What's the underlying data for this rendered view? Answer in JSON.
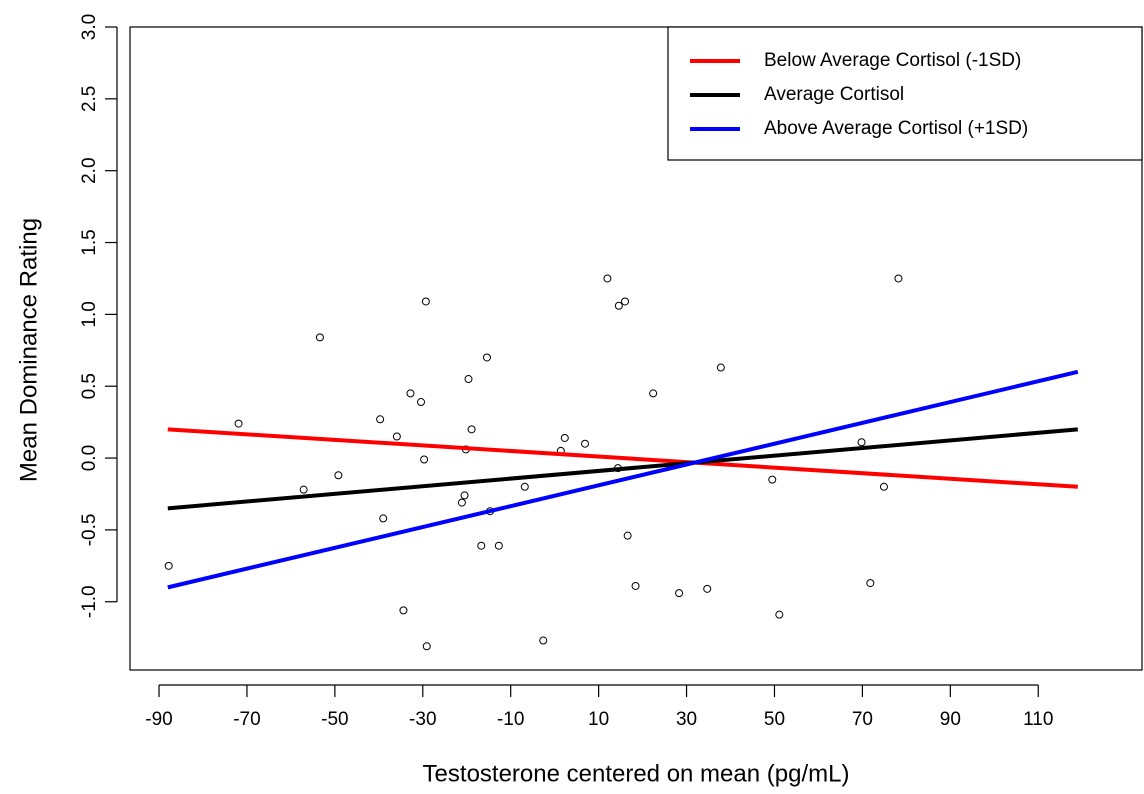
{
  "chart_data": {
    "type": "scatter",
    "x_label": "Testosterone centered on mean (pg/mL)",
    "y_label": "Mean Dominance Rating",
    "xlim": [
      -96.6,
      133.6
    ],
    "ylim": [
      -1.475,
      3.0
    ],
    "xticks": [
      -90,
      -70,
      -50,
      -30,
      -10,
      10,
      30,
      50,
      70,
      90,
      110
    ],
    "yticks": [
      {
        "value": -1,
        "label": "-1.0"
      },
      -0.5,
      {
        "value": 0,
        "label": "0.0"
      },
      0.5,
      {
        "value": 1,
        "label": "1.0"
      },
      1.5,
      {
        "value": 2,
        "label": "2.0"
      },
      2.5,
      {
        "value": 3,
        "label": "3.0"
      }
    ],
    "points": {
      "color": "#000000",
      "x": [
        -87.8,
        -71.9,
        -57.1,
        -53.4,
        -49.2,
        -39.7,
        -39.0,
        -35.9,
        -34.4,
        -32.8,
        -30.4,
        -29.7,
        -29.3,
        -29.1,
        -21.1,
        -20.5,
        -20.2,
        -19.6,
        -18.9,
        -16.7,
        -15.4,
        -14.7,
        -12.7,
        -6.8,
        -2.6,
        1.4,
        2.3,
        6.9,
        12.0,
        14.4,
        14.6,
        16.0,
        16.6,
        18.4,
        22.4,
        28.3,
        34.7,
        37.8,
        49.5,
        51.1,
        69.8,
        71.8,
        74.9,
        78.2
      ],
      "y": [
        -0.75,
        0.24,
        -0.22,
        0.84,
        -0.12,
        0.27,
        -0.42,
        0.15,
        -1.06,
        0.45,
        0.39,
        -0.01,
        1.09,
        -1.31,
        -0.31,
        -0.26,
        0.06,
        0.55,
        0.2,
        -0.61,
        0.7,
        -0.37,
        -0.61,
        -0.2,
        -1.27,
        0.05,
        0.14,
        0.1,
        1.25,
        -0.07,
        1.06,
        1.09,
        -0.54,
        -0.89,
        0.45,
        -0.94,
        -0.91,
        0.63,
        -0.15,
        -1.09,
        0.11,
        -0.87,
        -0.2,
        1.25
      ]
    },
    "series": [
      {
        "name": "Below Average Cortisol (-1SD)",
        "color": "#ff0000",
        "x": [
          -88,
          119
        ],
        "values": [
          0.2,
          -0.2
        ]
      },
      {
        "name": "Average Cortisol",
        "color": "#000000",
        "x": [
          -88,
          119
        ],
        "values": [
          -0.35,
          0.2
        ]
      },
      {
        "name": "Above Average Cortisol (+1SD)",
        "color": "#0000ff",
        "x": [
          -88,
          119
        ],
        "values": [
          -0.9,
          0.6
        ]
      }
    ],
    "legend": "top-right"
  }
}
